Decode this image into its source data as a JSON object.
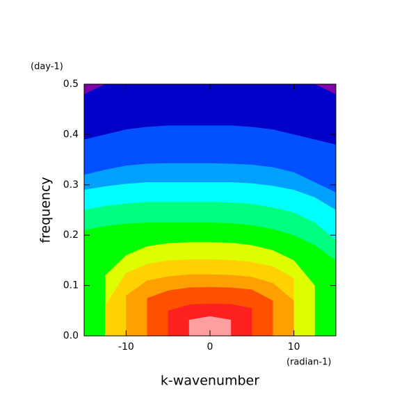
{
  "chart_data": {
    "type": "contour",
    "x_label": "k-wavenumber",
    "y_label": "frequency",
    "x_unit": "(radian-1)",
    "y_unit": "(day-1)",
    "xlim": [
      -15,
      15
    ],
    "ylim": [
      0,
      0.5
    ],
    "xticks": [
      -10,
      0,
      10
    ],
    "yticks": [
      {
        "value": 0,
        "label": "0.0"
      },
      0.1,
      0.2,
      0.3,
      0.4,
      0.5
    ],
    "background_color": "#8000a8",
    "x": [
      -15,
      -12.5,
      -10,
      -7.5,
      -5,
      -2.5,
      0,
      2.5,
      5,
      7.5,
      10,
      12.5,
      15
    ],
    "contours": [
      {
        "color": "#0000c8",
        "values": [
          0.48,
          0.5,
          0.5,
          0.5,
          0.5,
          0.5,
          0.5,
          0.5,
          0.5,
          0.5,
          0.5,
          0.5,
          0.48
        ]
      },
      {
        "color": "#0050ff",
        "values": [
          0.39,
          0.4,
          0.41,
          0.415,
          0.418,
          0.418,
          0.418,
          0.418,
          0.415,
          0.41,
          0.4,
          0.39,
          0.38
        ]
      },
      {
        "color": "#00a0ff",
        "values": [
          0.32,
          0.33,
          0.338,
          0.342,
          0.343,
          0.343,
          0.343,
          0.342,
          0.34,
          0.335,
          0.325,
          0.305,
          0.285
        ]
      },
      {
        "color": "#00ffff",
        "values": [
          0.29,
          0.297,
          0.302,
          0.305,
          0.305,
          0.305,
          0.305,
          0.305,
          0.303,
          0.298,
          0.29,
          0.275,
          0.25
        ]
      },
      {
        "color": "#00ff80",
        "values": [
          0.25,
          0.258,
          0.263,
          0.266,
          0.266,
          0.266,
          0.266,
          0.265,
          0.262,
          0.255,
          0.245,
          0.225,
          0.19
        ]
      },
      {
        "color": "#00ff00",
        "values": [
          0.21,
          0.218,
          0.223,
          0.225,
          0.225,
          0.225,
          0.225,
          0.224,
          0.22,
          0.212,
          0.2,
          0.18,
          0.15
        ]
      },
      {
        "color": "#ddff00",
        "values": [
          null,
          0.12,
          0.16,
          0.178,
          0.184,
          0.186,
          0.186,
          0.185,
          0.18,
          0.17,
          0.15,
          0.1,
          null
        ]
      },
      {
        "color": "#ffd200",
        "values": [
          null,
          0.06,
          0.125,
          0.143,
          0.15,
          0.152,
          0.152,
          0.151,
          0.147,
          0.138,
          0.115,
          null,
          null
        ]
      },
      {
        "color": "#ffa000",
        "values": [
          null,
          null,
          0.08,
          0.11,
          0.118,
          0.122,
          0.122,
          0.121,
          0.117,
          0.105,
          0.07,
          null,
          null
        ]
      },
      {
        "color": "#ff5000",
        "values": [
          null,
          null,
          null,
          0.075,
          0.09,
          0.096,
          0.097,
          0.096,
          0.092,
          0.07,
          null,
          null,
          null
        ]
      },
      {
        "color": "#ff2020",
        "values": [
          null,
          null,
          null,
          null,
          0.05,
          0.062,
          0.064,
          0.063,
          0.055,
          null,
          null,
          null,
          null
        ]
      },
      {
        "color": "#ff9e9e",
        "values": [
          null,
          null,
          null,
          null,
          null,
          0.032,
          0.039,
          0.032,
          null,
          null,
          null,
          null,
          null
        ]
      }
    ]
  }
}
